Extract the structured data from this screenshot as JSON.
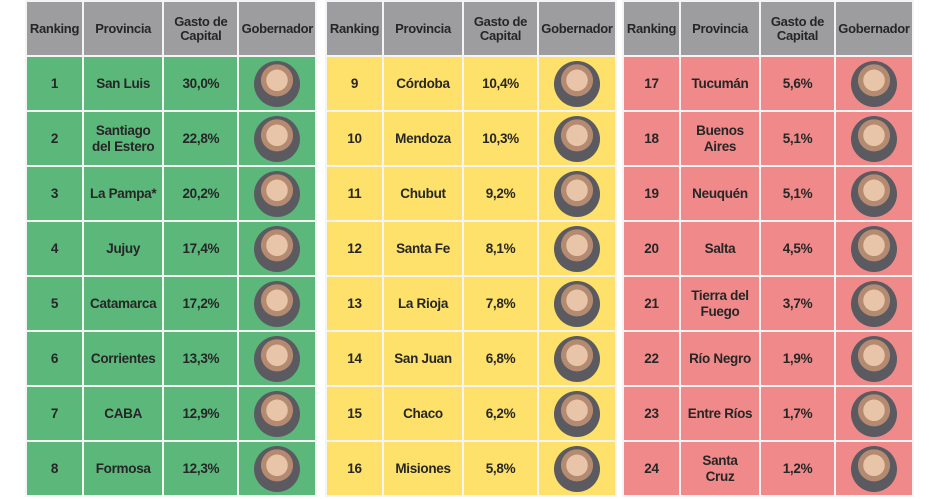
{
  "colors": {
    "header": "#9d9da0",
    "green": "#5cb77a",
    "yellow": "#fde16a",
    "red": "#f08a8a"
  },
  "headers": {
    "ranking": "Ranking",
    "provincia": "Provincia",
    "gasto": "Gasto de Capital",
    "gobernador": "Gobernador"
  },
  "tables": [
    {
      "color": "#5cb77a",
      "rows": [
        {
          "rank": "1",
          "prov": "San Luis",
          "gasto": "30,0%"
        },
        {
          "rank": "2",
          "prov": "Santiago del Estero",
          "gasto": "22,8%"
        },
        {
          "rank": "3",
          "prov": "La Pampa*",
          "gasto": "20,2%"
        },
        {
          "rank": "4",
          "prov": "Jujuy",
          "gasto": "17,4%"
        },
        {
          "rank": "5",
          "prov": "Catamarca",
          "gasto": "17,2%"
        },
        {
          "rank": "6",
          "prov": "Corrientes",
          "gasto": "13,3%"
        },
        {
          "rank": "7",
          "prov": "CABA",
          "gasto": "12,9%"
        },
        {
          "rank": "8",
          "prov": "Formosa",
          "gasto": "12,3%"
        }
      ]
    },
    {
      "color": "#fde16a",
      "rows": [
        {
          "rank": "9",
          "prov": "Córdoba",
          "gasto": "10,4%"
        },
        {
          "rank": "10",
          "prov": "Mendoza",
          "gasto": "10,3%"
        },
        {
          "rank": "11",
          "prov": "Chubut",
          "gasto": "9,2%"
        },
        {
          "rank": "12",
          "prov": "Santa Fe",
          "gasto": "8,1%"
        },
        {
          "rank": "13",
          "prov": "La Rioja",
          "gasto": "7,8%"
        },
        {
          "rank": "14",
          "prov": "San Juan",
          "gasto": "6,8%"
        },
        {
          "rank": "15",
          "prov": "Chaco",
          "gasto": "6,2%"
        },
        {
          "rank": "16",
          "prov": "Misiones",
          "gasto": "5,8%"
        }
      ]
    },
    {
      "color": "#f08a8a",
      "rows": [
        {
          "rank": "17",
          "prov": "Tucumán",
          "gasto": "5,6%"
        },
        {
          "rank": "18",
          "prov": "Buenos Aires",
          "gasto": "5,1%"
        },
        {
          "rank": "19",
          "prov": "Neuquén",
          "gasto": "5,1%"
        },
        {
          "rank": "20",
          "prov": "Salta",
          "gasto": "4,5%"
        },
        {
          "rank": "21",
          "prov": "Tierra del Fuego",
          "gasto": "3,7%"
        },
        {
          "rank": "22",
          "prov": "Río Negro",
          "gasto": "1,9%"
        },
        {
          "rank": "23",
          "prov": "Entre Ríos",
          "gasto": "1,7%"
        },
        {
          "rank": "24",
          "prov": "Santa Cruz",
          "gasto": "1,2%"
        }
      ]
    }
  ]
}
